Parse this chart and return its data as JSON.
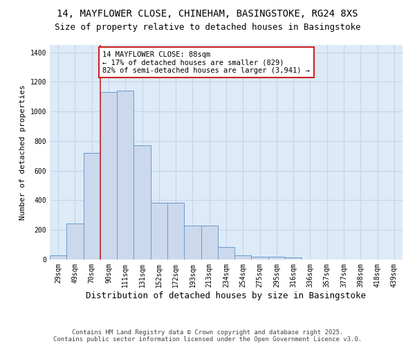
{
  "title_line1": "14, MAYFLOWER CLOSE, CHINEHAM, BASINGSTOKE, RG24 8XS",
  "title_line2": "Size of property relative to detached houses in Basingstoke",
  "xlabel": "Distribution of detached houses by size in Basingstoke",
  "ylabel": "Number of detached properties",
  "categories": [
    "29sqm",
    "49sqm",
    "70sqm",
    "90sqm",
    "111sqm",
    "131sqm",
    "152sqm",
    "172sqm",
    "193sqm",
    "213sqm",
    "234sqm",
    "254sqm",
    "275sqm",
    "295sqm",
    "316sqm",
    "336sqm",
    "357sqm",
    "377sqm",
    "398sqm",
    "418sqm",
    "439sqm"
  ],
  "values": [
    30,
    245,
    720,
    1130,
    1140,
    770,
    385,
    385,
    230,
    230,
    85,
    30,
    20,
    20,
    15,
    0,
    0,
    0,
    0,
    0,
    0
  ],
  "bar_color": "#ccd9ec",
  "bar_edge_color": "#6699cc",
  "vline_color": "#cc2222",
  "annotation_text": "14 MAYFLOWER CLOSE: 88sqm\n← 17% of detached houses are smaller (829)\n82% of semi-detached houses are larger (3,941) →",
  "annotation_box_color": "#ffffff",
  "annotation_box_edge_color": "#cc2222",
  "ylim": [
    0,
    1450
  ],
  "yticks": [
    0,
    200,
    400,
    600,
    800,
    1000,
    1200,
    1400
  ],
  "grid_color": "#c5d5e8",
  "bg_color": "#ddeaf7",
  "fig_bg_color": "#ffffff",
  "footnote": "Contains HM Land Registry data © Crown copyright and database right 2025.\nContains public sector information licensed under the Open Government Licence v3.0.",
  "title_fontsize": 10,
  "subtitle_fontsize": 9,
  "tick_fontsize": 7,
  "ylabel_fontsize": 8,
  "xlabel_fontsize": 9,
  "footnote_fontsize": 6.5,
  "annotation_fontsize": 7.5,
  "vline_xindex": 3
}
